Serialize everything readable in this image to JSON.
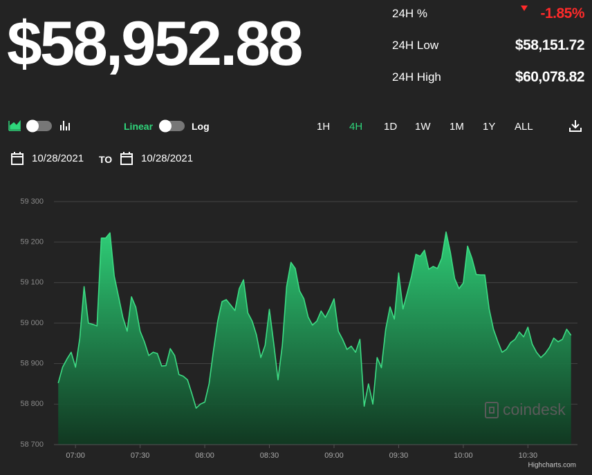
{
  "header": {
    "price": "$58,952.88",
    "stats": [
      {
        "label": "24H %",
        "value": "-1.85%"
      },
      {
        "label": "24H Low",
        "value": "$58,151.72"
      },
      {
        "label": "24H High",
        "value": "$60,078.82"
      }
    ]
  },
  "controls": {
    "scale_linear": "Linear",
    "scale_log": "Log",
    "ranges": [
      "1H",
      "4H",
      "1D",
      "1W",
      "1M",
      "1Y",
      "ALL"
    ],
    "date_from": "10/28/2021",
    "date_sep": "TO",
    "date_to": "10/28/2021"
  },
  "chart_data": {
    "type": "area",
    "color": "#3ddc84",
    "watermark": "coindesk",
    "credit": "Highcharts.com",
    "grid": true,
    "x": [
      "06:52",
      "06:54",
      "06:56",
      "06:58",
      "07:00",
      "07:02",
      "07:04",
      "07:06",
      "07:08",
      "07:10",
      "07:12",
      "07:14",
      "07:16",
      "07:18",
      "07:20",
      "07:22",
      "07:24",
      "07:26",
      "07:28",
      "07:30",
      "07:32",
      "07:34",
      "07:36",
      "07:38",
      "07:40",
      "07:42",
      "07:44",
      "07:46",
      "07:48",
      "07:50",
      "07:52",
      "07:54",
      "07:56",
      "07:58",
      "08:00",
      "08:02",
      "08:04",
      "08:06",
      "08:08",
      "08:10",
      "08:12",
      "08:14",
      "08:16",
      "08:18",
      "08:20",
      "08:22",
      "08:24",
      "08:26",
      "08:28",
      "08:30",
      "08:32",
      "08:34",
      "08:36",
      "08:38",
      "08:40",
      "08:42",
      "08:44",
      "08:46",
      "08:48",
      "08:50",
      "08:52",
      "08:54",
      "08:56",
      "08:58",
      "09:00",
      "09:02",
      "09:04",
      "09:06",
      "09:08",
      "09:10",
      "09:12",
      "09:14",
      "09:16",
      "09:18",
      "09:20",
      "09:22",
      "09:24",
      "09:26",
      "09:28",
      "09:30",
      "09:32",
      "09:34",
      "09:36",
      "09:38",
      "09:40",
      "09:42",
      "09:44",
      "09:46",
      "09:48",
      "09:50",
      "09:52",
      "09:54",
      "09:56",
      "09:58",
      "10:00",
      "10:02",
      "10:04",
      "10:06",
      "10:08",
      "10:10",
      "10:12",
      "10:14",
      "10:16",
      "10:18",
      "10:20",
      "10:22",
      "10:24",
      "10:26",
      "10:28",
      "10:30",
      "10:32",
      "10:34",
      "10:36",
      "10:38",
      "10:40",
      "10:42",
      "10:44",
      "10:46",
      "10:48",
      "10:50"
    ],
    "values": [
      58852,
      58891,
      58911,
      58928,
      58891,
      58963,
      59090,
      59000,
      58997,
      58993,
      59210,
      59210,
      59223,
      59116,
      59065,
      59014,
      58980,
      59065,
      59039,
      58980,
      58954,
      58920,
      58928,
      58925,
      58894,
      58895,
      58937,
      58920,
      58873,
      58869,
      58860,
      58826,
      58790,
      58800,
      58805,
      58850,
      58930,
      59005,
      59053,
      59058,
      59045,
      59031,
      59085,
      59107,
      59025,
      59005,
      58971,
      58915,
      58945,
      59034,
      58950,
      58860,
      58945,
      59090,
      59150,
      59135,
      59080,
      59060,
      59015,
      58995,
      59005,
      59030,
      59014,
      59035,
      59060,
      58980,
      58960,
      58935,
      58943,
      58928,
      58960,
      58795,
      58850,
      58800,
      58915,
      58890,
      58985,
      59040,
      59010,
      59124,
      59035,
      59075,
      59116,
      59170,
      59165,
      59180,
      59133,
      59140,
      59135,
      59160,
      59225,
      59175,
      59110,
      59085,
      59099,
      59190,
      59160,
      59120,
      59119,
      59119,
      59035,
      58985,
      58955,
      58928,
      58935,
      58952,
      58960,
      58978,
      58966,
      58990,
      58948,
      58928,
      58915,
      58925,
      58940,
      58963,
      58954,
      58960,
      58985,
      58970
    ],
    "xlim": [
      "06:50",
      "10:53"
    ],
    "xticks": [
      "07:00",
      "07:30",
      "08:00",
      "08:30",
      "09:00",
      "09:30",
      "10:00",
      "10:30"
    ],
    "ylim": [
      58700,
      59300
    ],
    "yticks": [
      {
        "value": 58700,
        "label": "58 700"
      },
      {
        "value": 58800,
        "label": "58 800"
      },
      {
        "value": 58900,
        "label": "58 900"
      },
      {
        "value": 59000,
        "label": "59 000"
      },
      {
        "value": 59100,
        "label": "59 100"
      },
      {
        "value": 59200,
        "label": "59 200"
      },
      {
        "value": 59300,
        "label": "59 300"
      }
    ]
  }
}
